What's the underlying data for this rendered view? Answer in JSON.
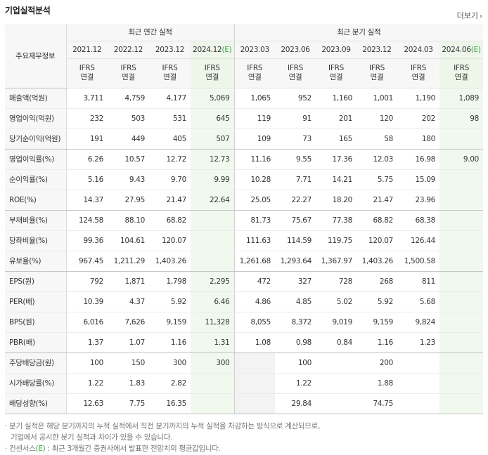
{
  "title": "기업실적분석",
  "more_label": "더보기",
  "row_header_label": "주요재무정보",
  "group_annual": "최근 연간 실적",
  "group_quarter": "최근 분기 실적",
  "periods": [
    {
      "label": "2021.12",
      "est": false
    },
    {
      "label": "2022.12",
      "est": false
    },
    {
      "label": "2023.12",
      "est": false
    },
    {
      "label": "2024.12(E)",
      "est": true
    },
    {
      "label": "2023.03",
      "est": false
    },
    {
      "label": "2023.06",
      "est": false
    },
    {
      "label": "2023.09",
      "est": false
    },
    {
      "label": "2023.12",
      "est": false
    },
    {
      "label": "2024.03",
      "est": false
    },
    {
      "label": "2024.06(E)",
      "est": true
    }
  ],
  "ifrs_line1": "IFRS",
  "ifrs_line2": "연결",
  "rows": [
    {
      "label": "매출액(억원)",
      "values": [
        "3,711",
        "4,759",
        "4,177",
        "5,069",
        "1,065",
        "952",
        "1,160",
        "1,001",
        "1,190",
        "1,089"
      ]
    },
    {
      "label": "영업이익(억원)",
      "values": [
        "232",
        "503",
        "531",
        "645",
        "119",
        "91",
        "201",
        "120",
        "202",
        "98"
      ]
    },
    {
      "label": "당기순이익(억원)",
      "values": [
        "191",
        "449",
        "405",
        "507",
        "109",
        "73",
        "165",
        "58",
        "180",
        ""
      ]
    },
    {
      "label": "영업이익률(%)",
      "values": [
        "6.26",
        "10.57",
        "12.72",
        "12.73",
        "11.16",
        "9.55",
        "17.36",
        "12.03",
        "16.98",
        "9.00"
      ]
    },
    {
      "label": "순이익률(%)",
      "values": [
        "5.16",
        "9.43",
        "9.70",
        "9.99",
        "10.28",
        "7.71",
        "14.21",
        "5.75",
        "15.09",
        ""
      ]
    },
    {
      "label": "ROE(%)",
      "values": [
        "14.37",
        "27.95",
        "21.47",
        "22.64",
        "25.05",
        "22.27",
        "18.20",
        "21.47",
        "23.96",
        ""
      ]
    },
    {
      "label": "부채비율(%)",
      "values": [
        "124.58",
        "88.10",
        "68.82",
        "",
        "81.73",
        "75.67",
        "77.38",
        "68.82",
        "68.38",
        ""
      ]
    },
    {
      "label": "당좌비율(%)",
      "values": [
        "99.36",
        "104.61",
        "120.07",
        "",
        "111.63",
        "114.59",
        "119.75",
        "120.07",
        "126.44",
        ""
      ]
    },
    {
      "label": "유보율(%)",
      "values": [
        "967.45",
        "1,211.29",
        "1,403.26",
        "",
        "1,261.68",
        "1,293.64",
        "1,367.97",
        "1,403.26",
        "1,500.58",
        ""
      ]
    },
    {
      "label": "EPS(원)",
      "values": [
        "792",
        "1,871",
        "1,798",
        "2,295",
        "472",
        "327",
        "728",
        "268",
        "811",
        ""
      ]
    },
    {
      "label": "PER(배)",
      "values": [
        "10.39",
        "4.37",
        "5.92",
        "6.46",
        "4.86",
        "4.85",
        "5.02",
        "5.92",
        "5.68",
        ""
      ]
    },
    {
      "label": "BPS(원)",
      "values": [
        "6,016",
        "7,626",
        "9,159",
        "11,328",
        "8,055",
        "8,372",
        "9,019",
        "9,159",
        "9,824",
        ""
      ]
    },
    {
      "label": "PBR(배)",
      "values": [
        "1.37",
        "1.07",
        "1.16",
        "1.31",
        "1.08",
        "0.98",
        "0.84",
        "1.16",
        "1.23",
        ""
      ]
    },
    {
      "label": "주당배당금(원)",
      "values": [
        "100",
        "150",
        "300",
        "300",
        "",
        "100",
        "",
        "200",
        "",
        ""
      ]
    },
    {
      "label": "시가배당률(%)",
      "values": [
        "1.22",
        "1.83",
        "2.82",
        "",
        "",
        "1.22",
        "",
        "1.88",
        "",
        ""
      ]
    },
    {
      "label": "배당성향(%)",
      "values": [
        "12.63",
        "7.75",
        "16.35",
        "",
        "",
        "29.84",
        "",
        "74.75",
        "",
        ""
      ]
    }
  ],
  "notes": {
    "line1": "분기 실적은 해당 분기까지의 누적 실적에서 직전 분기까지의 누적 실적을 차감하는 방식으로 계산되므로,",
    "line2": "기업에서 공시한 분기 실적과 차이가 있을 수 있습니다.",
    "line3_prefix": "컨센서스",
    "line3_e": "(E)",
    "line3_rest": ": 최근 3개월간 증권사에서 발표한 전망치의 평균값입니다."
  }
}
